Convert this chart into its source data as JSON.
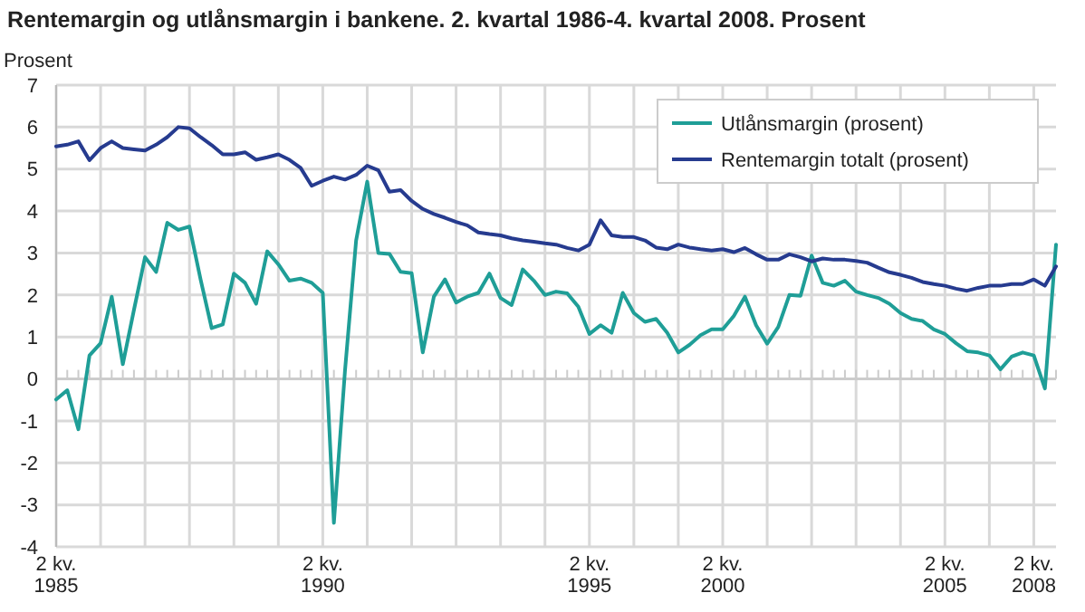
{
  "chart_data": {
    "type": "line",
    "title": "Rentemargin og utlånsmargin i bankene. 2. kvartal 1986-4. kvartal 2008. Prosent",
    "ylabel": "Prosent",
    "categories": [
      "2 kv. 1985",
      null,
      null,
      null,
      null,
      null,
      null,
      null,
      null,
      null,
      null,
      null,
      null,
      null,
      null,
      null,
      null,
      null,
      null,
      null,
      null,
      null,
      null,
      null,
      "2 kv. 1990",
      null,
      null,
      null,
      null,
      null,
      null,
      null,
      null,
      null,
      null,
      null,
      null,
      null,
      null,
      null,
      null,
      null,
      null,
      null,
      null,
      null,
      null,
      null,
      "2 kv. 1995",
      null,
      null,
      null,
      null,
      null,
      null,
      null,
      null,
      null,
      null,
      null,
      "2 kv. 2000",
      null,
      null,
      null,
      null,
      null,
      null,
      null,
      null,
      null,
      null,
      null,
      null,
      null,
      null,
      null,
      null,
      null,
      null,
      null,
      "2 kv. 2005",
      null,
      null,
      null,
      null,
      null,
      null,
      null,
      "2 kv. 2008",
      null,
      null
    ],
    "series": [
      {
        "name": "Utlånsmargin (prosent)",
        "color": "#1f9e97",
        "values": [
          -0.49,
          -0.27,
          -1.2,
          0.56,
          0.85,
          1.96,
          0.35,
          1.64,
          2.9,
          2.55,
          3.72,
          3.55,
          3.63,
          2.37,
          1.21,
          1.3,
          2.51,
          2.29,
          1.79,
          3.04,
          2.73,
          2.34,
          2.39,
          2.29,
          2.05,
          -3.43,
          0.2,
          3.3,
          4.7,
          3.0,
          2.98,
          2.55,
          2.52,
          0.63,
          1.96,
          2.37,
          1.82,
          1.96,
          2.05,
          2.51,
          1.93,
          1.76,
          2.61,
          2.34,
          2.0,
          2.08,
          2.04,
          1.72,
          1.07,
          1.28,
          1.1,
          2.05,
          1.57,
          1.36,
          1.43,
          1.1,
          0.63,
          0.81,
          1.04,
          1.18,
          1.18,
          1.5,
          1.96,
          1.28,
          0.84,
          1.24,
          2.0,
          1.98,
          2.94,
          2.29,
          2.22,
          2.34,
          2.08,
          2.0,
          1.93,
          1.79,
          1.57,
          1.43,
          1.38,
          1.18,
          1.07,
          0.85,
          0.66,
          0.63,
          0.56,
          0.23,
          0.53,
          0.63,
          0.56,
          -0.23,
          3.2
        ]
      },
      {
        "name": "Rentemargin totalt (prosent)",
        "color": "#263b8f",
        "values": [
          5.54,
          5.58,
          5.66,
          5.21,
          5.5,
          5.66,
          5.5,
          5.47,
          5.44,
          5.58,
          5.76,
          6.0,
          5.97,
          5.76,
          5.57,
          5.35,
          5.35,
          5.4,
          5.22,
          5.28,
          5.35,
          5.22,
          5.03,
          4.6,
          4.72,
          4.82,
          4.75,
          4.86,
          5.08,
          4.97,
          4.46,
          4.5,
          4.24,
          4.05,
          3.93,
          3.84,
          3.74,
          3.66,
          3.49,
          3.45,
          3.42,
          3.35,
          3.3,
          3.27,
          3.23,
          3.2,
          3.12,
          3.06,
          3.2,
          3.78,
          3.42,
          3.38,
          3.38,
          3.3,
          3.13,
          3.09,
          3.2,
          3.13,
          3.09,
          3.06,
          3.09,
          3.02,
          3.12,
          2.97,
          2.84,
          2.84,
          2.97,
          2.9,
          2.8,
          2.87,
          2.84,
          2.84,
          2.81,
          2.77,
          2.65,
          2.54,
          2.48,
          2.41,
          2.31,
          2.26,
          2.22,
          2.15,
          2.1,
          2.17,
          2.22,
          2.22,
          2.26,
          2.26,
          2.37,
          2.22,
          2.68
        ]
      }
    ],
    "ylim": [
      -4,
      7
    ],
    "yticks": [
      -4,
      -3,
      -2,
      -1,
      0,
      1,
      2,
      3,
      4,
      5,
      6,
      7
    ],
    "grid": true,
    "legend": "top right",
    "marker": "none",
    "line_style": "solid"
  }
}
